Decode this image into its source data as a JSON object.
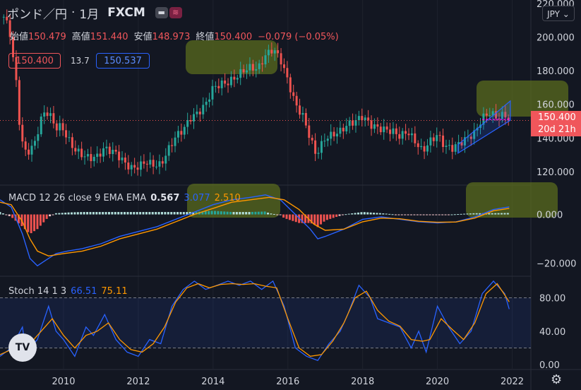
{
  "header": {
    "symbol": "ポンド／円",
    "interval": "1月",
    "exchange": "FXCM"
  },
  "ohlc": {
    "open_label": "始値",
    "open": "150.479",
    "high_label": "高値",
    "high": "151.440",
    "low_label": "安値",
    "low": "148.973",
    "close_label": "終値",
    "close": "150.400",
    "change": "−0.079 (−0.05%)"
  },
  "quote": {
    "bid": "150.400",
    "spread": "13.7",
    "ask": "150.537"
  },
  "currency_button": "JPY",
  "price_tag": {
    "price": "150.400",
    "countdown": "20d 21h"
  },
  "macd_label": {
    "text": "MACD 12 26 close 9 EMA EMA",
    "hist": "0.567",
    "macd": "3.077",
    "signal": "2.510"
  },
  "stoch_label": {
    "text": "Stoch 14 1 3",
    "k": "66.51",
    "d": "75.11"
  },
  "logo": "TV",
  "colors": {
    "up": "#26a69a",
    "down": "#ef5350",
    "macd": "#2962ff",
    "signal": "#ff9800",
    "highlight": "#5a6b1e"
  },
  "chart_data": [
    {
      "type": "candlestick",
      "title": "ポンド／円 1月 FXCM",
      "x_ticks": [
        "2010",
        "2012",
        "2014",
        "2016",
        "2018",
        "2020",
        "2022"
      ],
      "y_ticks": [
        "120.000",
        "140.000",
        "160.000",
        "180.000",
        "200.000",
        "220.000"
      ],
      "ylim": [
        112,
        222
      ],
      "xlim": [
        2008.3,
        2022.5
      ],
      "last_price": 150.4,
      "anchors": [
        [
          2008.4,
          212
        ],
        [
          2008.55,
          205
        ],
        [
          2008.75,
          170
        ],
        [
          2008.85,
          140
        ],
        [
          2009.0,
          131
        ],
        [
          2009.2,
          135
        ],
        [
          2009.45,
          155
        ],
        [
          2009.6,
          155
        ],
        [
          2009.8,
          146
        ],
        [
          2009.95,
          147
        ],
        [
          2010.1,
          140
        ],
        [
          2010.3,
          133
        ],
        [
          2010.5,
          130
        ],
        [
          2010.7,
          128
        ],
        [
          2010.9,
          129
        ],
        [
          2011.1,
          134
        ],
        [
          2011.4,
          131
        ],
        [
          2011.6,
          126
        ],
        [
          2011.8,
          122
        ],
        [
          2012.0,
          123
        ],
        [
          2012.2,
          126
        ],
        [
          2012.4,
          124
        ],
        [
          2012.6,
          124
        ],
        [
          2012.8,
          133
        ],
        [
          2013.0,
          141
        ],
        [
          2013.2,
          145
        ],
        [
          2013.4,
          152
        ],
        [
          2013.6,
          155
        ],
        [
          2013.8,
          160
        ],
        [
          2014.0,
          170
        ],
        [
          2014.2,
          172
        ],
        [
          2014.4,
          173
        ],
        [
          2014.6,
          176
        ],
        [
          2014.8,
          180
        ],
        [
          2015.0,
          182
        ],
        [
          2015.2,
          181
        ],
        [
          2015.4,
          189
        ],
        [
          2015.6,
          193
        ],
        [
          2015.8,
          187
        ],
        [
          2016.0,
          174
        ],
        [
          2016.2,
          160
        ],
        [
          2016.4,
          153
        ],
        [
          2016.55,
          143
        ],
        [
          2016.75,
          130
        ],
        [
          2017.0,
          140
        ],
        [
          2017.2,
          142
        ],
        [
          2017.4,
          144
        ],
        [
          2017.6,
          148
        ],
        [
          2017.8,
          150
        ],
        [
          2018.0,
          153
        ],
        [
          2018.2,
          148
        ],
        [
          2018.4,
          146
        ],
        [
          2018.6,
          145
        ],
        [
          2018.8,
          144
        ],
        [
          2019.0,
          141
        ],
        [
          2019.2,
          144
        ],
        [
          2019.4,
          138
        ],
        [
          2019.6,
          132
        ],
        [
          2019.8,
          138
        ],
        [
          2020.0,
          142
        ],
        [
          2020.2,
          135
        ],
        [
          2020.4,
          134
        ],
        [
          2020.6,
          137
        ],
        [
          2020.8,
          140
        ],
        [
          2021.0,
          143
        ],
        [
          2021.2,
          152
        ],
        [
          2021.4,
          155
        ],
        [
          2021.6,
          152
        ],
        [
          2021.8,
          154
        ],
        [
          2021.92,
          150.4
        ]
      ]
    },
    {
      "type": "macd",
      "y_ticks": [
        "0.000",
        "−20.000"
      ],
      "ylim": [
        -25,
        12
      ],
      "histogram": 0.567,
      "macd": 3.077,
      "signal": 2.51,
      "macd_anchors": [
        [
          2008.3,
          6
        ],
        [
          2008.6,
          3
        ],
        [
          2008.9,
          -8
        ],
        [
          2009.1,
          -18
        ],
        [
          2009.3,
          -21
        ],
        [
          2009.5,
          -19
        ],
        [
          2009.8,
          -16
        ],
        [
          2010.1,
          -15
        ],
        [
          2010.5,
          -14
        ],
        [
          2011.0,
          -12
        ],
        [
          2011.5,
          -9
        ],
        [
          2012.0,
          -7
        ],
        [
          2012.5,
          -5
        ],
        [
          2013.0,
          -2
        ],
        [
          2013.5,
          1
        ],
        [
          2014.0,
          4
        ],
        [
          2014.5,
          6
        ],
        [
          2015.0,
          7
        ],
        [
          2015.4,
          8
        ],
        [
          2015.8,
          6
        ],
        [
          2016.2,
          0
        ],
        [
          2016.6,
          -6
        ],
        [
          2016.8,
          -10
        ],
        [
          2017.0,
          -9
        ],
        [
          2017.5,
          -6
        ],
        [
          2018.0,
          -2
        ],
        [
          2018.5,
          -1
        ],
        [
          2019.0,
          -2
        ],
        [
          2019.5,
          -3
        ],
        [
          2020.0,
          -3.5
        ],
        [
          2020.5,
          -3
        ],
        [
          2021.0,
          -1
        ],
        [
          2021.5,
          2
        ],
        [
          2021.92,
          3.1
        ]
      ],
      "signal_anchors": [
        [
          2008.3,
          5
        ],
        [
          2008.6,
          4
        ],
        [
          2008.9,
          -3
        ],
        [
          2009.1,
          -10
        ],
        [
          2009.3,
          -15
        ],
        [
          2009.6,
          -17
        ],
        [
          2010.0,
          -16
        ],
        [
          2010.5,
          -15
        ],
        [
          2011.0,
          -13
        ],
        [
          2011.5,
          -10
        ],
        [
          2012.0,
          -8
        ],
        [
          2012.5,
          -6
        ],
        [
          2013.0,
          -3
        ],
        [
          2013.5,
          0
        ],
        [
          2014.0,
          2.5
        ],
        [
          2014.5,
          5
        ],
        [
          2015.0,
          6
        ],
        [
          2015.5,
          7
        ],
        [
          2015.9,
          6
        ],
        [
          2016.3,
          2
        ],
        [
          2016.7,
          -4
        ],
        [
          2017.0,
          -6.5
        ],
        [
          2017.5,
          -6
        ],
        [
          2018.0,
          -3
        ],
        [
          2018.5,
          -1.5
        ],
        [
          2019.0,
          -1.8
        ],
        [
          2019.5,
          -2.8
        ],
        [
          2020.0,
          -3.2
        ],
        [
          2020.5,
          -3.1
        ],
        [
          2021.0,
          -1.5
        ],
        [
          2021.5,
          1.5
        ],
        [
          2021.92,
          2.5
        ]
      ]
    },
    {
      "type": "stochastic",
      "y_ticks": [
        "80.00",
        "40.00",
        "0.00"
      ],
      "ylim": [
        -5,
        105
      ],
      "k": 66.51,
      "d": 75.11,
      "k_anchors": [
        [
          2008.3,
          10
        ],
        [
          2008.6,
          20
        ],
        [
          2008.9,
          45
        ],
        [
          2009.0,
          15
        ],
        [
          2009.3,
          30
        ],
        [
          2009.6,
          70
        ],
        [
          2009.8,
          40
        ],
        [
          2010.0,
          30
        ],
        [
          2010.3,
          10
        ],
        [
          2010.6,
          45
        ],
        [
          2010.8,
          35
        ],
        [
          2011.1,
          60
        ],
        [
          2011.4,
          30
        ],
        [
          2011.7,
          15
        ],
        [
          2012.0,
          10
        ],
        [
          2012.3,
          30
        ],
        [
          2012.6,
          25
        ],
        [
          2012.9,
          70
        ],
        [
          2013.2,
          90
        ],
        [
          2013.5,
          100
        ],
        [
          2013.8,
          90
        ],
        [
          2014.1,
          95
        ],
        [
          2014.4,
          100
        ],
        [
          2014.7,
          95
        ],
        [
          2015.0,
          100
        ],
        [
          2015.3,
          90
        ],
        [
          2015.6,
          100
        ],
        [
          2015.9,
          70
        ],
        [
          2016.2,
          20
        ],
        [
          2016.5,
          10
        ],
        [
          2016.8,
          5
        ],
        [
          2017.1,
          25
        ],
        [
          2017.4,
          40
        ],
        [
          2017.6,
          60
        ],
        [
          2017.9,
          95
        ],
        [
          2018.2,
          80
        ],
        [
          2018.4,
          55
        ],
        [
          2018.7,
          50
        ],
        [
          2019.0,
          45
        ],
        [
          2019.3,
          20
        ],
        [
          2019.5,
          40
        ],
        [
          2019.7,
          15
        ],
        [
          2020.0,
          70
        ],
        [
          2020.3,
          45
        ],
        [
          2020.6,
          25
        ],
        [
          2020.9,
          40
        ],
        [
          2021.2,
          85
        ],
        [
          2021.5,
          100
        ],
        [
          2021.8,
          85
        ],
        [
          2021.92,
          66.5
        ]
      ],
      "d_anchors": [
        [
          2008.3,
          12
        ],
        [
          2008.6,
          18
        ],
        [
          2008.9,
          30
        ],
        [
          2009.1,
          25
        ],
        [
          2009.4,
          40
        ],
        [
          2009.7,
          55
        ],
        [
          2010.0,
          35
        ],
        [
          2010.3,
          20
        ],
        [
          2010.6,
          35
        ],
        [
          2010.9,
          40
        ],
        [
          2011.2,
          50
        ],
        [
          2011.5,
          30
        ],
        [
          2011.8,
          18
        ],
        [
          2012.1,
          15
        ],
        [
          2012.4,
          25
        ],
        [
          2012.7,
          45
        ],
        [
          2013.0,
          75
        ],
        [
          2013.3,
          92
        ],
        [
          2013.6,
          97
        ],
        [
          2013.9,
          92
        ],
        [
          2014.2,
          96
        ],
        [
          2014.5,
          97
        ],
        [
          2014.8,
          96
        ],
        [
          2015.1,
          97
        ],
        [
          2015.4,
          94
        ],
        [
          2015.7,
          92
        ],
        [
          2016.0,
          55
        ],
        [
          2016.3,
          20
        ],
        [
          2016.6,
          10
        ],
        [
          2016.9,
          12
        ],
        [
          2017.2,
          28
        ],
        [
          2017.5,
          50
        ],
        [
          2017.8,
          80
        ],
        [
          2018.1,
          88
        ],
        [
          2018.4,
          65
        ],
        [
          2018.7,
          52
        ],
        [
          2019.0,
          46
        ],
        [
          2019.3,
          30
        ],
        [
          2019.6,
          28
        ],
        [
          2019.8,
          30
        ],
        [
          2020.1,
          55
        ],
        [
          2020.4,
          42
        ],
        [
          2020.7,
          30
        ],
        [
          2021.0,
          50
        ],
        [
          2021.3,
          85
        ],
        [
          2021.6,
          97
        ],
        [
          2021.85,
          80
        ],
        [
          2021.92,
          75.1
        ]
      ]
    }
  ]
}
